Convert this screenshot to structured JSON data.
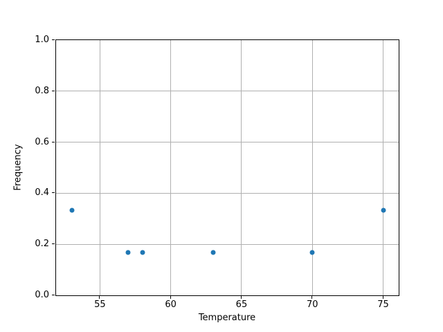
{
  "chart_data": {
    "type": "scatter",
    "title": "",
    "xlabel": "Temperature",
    "ylabel": "Frequency",
    "xlim": [
      51.9,
      76.1
    ],
    "ylim": [
      0.0,
      1.0
    ],
    "grid": true,
    "legend": "none",
    "grid_color": "#b0b0b0",
    "spine_color": "#000000",
    "background_color": "#ffffff",
    "xticks": [
      {
        "value": 55,
        "label": "55"
      },
      {
        "value": 60,
        "label": "60"
      },
      {
        "value": 65,
        "label": "65"
      },
      {
        "value": 70,
        "label": "70"
      },
      {
        "value": 75,
        "label": "75"
      }
    ],
    "yticks": [
      {
        "value": 0.0,
        "label": "0.0"
      },
      {
        "value": 0.2,
        "label": "0.2"
      },
      {
        "value": 0.4,
        "label": "0.4"
      },
      {
        "value": 0.6,
        "label": "0.6"
      },
      {
        "value": 0.8,
        "label": "0.8"
      },
      {
        "value": 1.0,
        "label": "1.0"
      }
    ],
    "series": [
      {
        "name": "frequency-points",
        "marker": "circle",
        "color": "#1f77b4",
        "x": [
          53,
          57,
          58,
          63,
          70,
          75
        ],
        "y": [
          0.333,
          0.167,
          0.167,
          0.167,
          0.167,
          0.333
        ]
      }
    ]
  }
}
